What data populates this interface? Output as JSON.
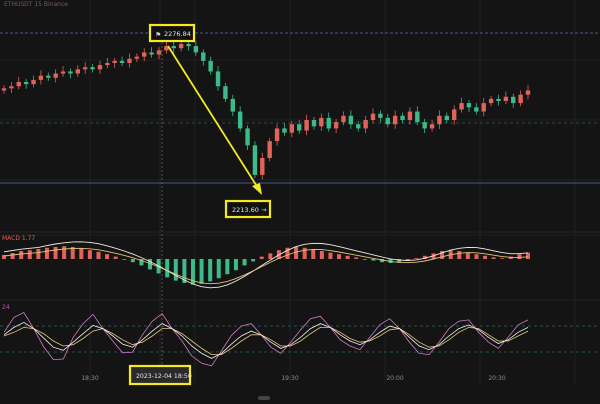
{
  "colors": {
    "background": "#141414",
    "up": "#e3625a",
    "down": "#3dba8a",
    "grid": "#2a2a2a",
    "price_line": "#5a6fc4",
    "dash": "#3e8f86",
    "highlight": "#f5e91f",
    "macd_line": "#f0ece0",
    "signal_line": "#e0c37a",
    "kdj_k": "#f2f2f2",
    "kdj_d": "#e8c77a",
    "kdj_j": "#d27cc6",
    "axis_text": "#8c8c8c"
  },
  "icons": {
    "price_flag": "flag-icon",
    "arrow": "yellow-arrow"
  },
  "chart_data": {
    "type": "candlestick",
    "symbol_line": "ETHUSDT 15 Binance",
    "price_axis": {
      "min": 2195,
      "max": 2285
    },
    "annotations": {
      "high_label": "2276.84",
      "low_label": "2213.60",
      "crosshair_time": "2023-12-04 18:50"
    },
    "x_ticks": [
      "18:30",
      "19:30",
      "20:00",
      "20:30"
    ],
    "macd": {
      "label": "MACD 1.77"
    },
    "kdj": {
      "label": "24"
    },
    "candle_closes": [
      2255,
      2256,
      2258,
      2257,
      2259,
      2261,
      2260,
      2262,
      2263,
      2262,
      2264,
      2265,
      2264,
      2266,
      2267,
      2268,
      2267,
      2269,
      2270,
      2272,
      2271,
      2273,
      2275,
      2274,
      2276,
      2275,
      2272,
      2268,
      2263,
      2256,
      2250,
      2244,
      2236,
      2228,
      2214,
      2222,
      2230,
      2236,
      2234,
      2238,
      2235,
      2240,
      2237,
      2241,
      2236,
      2239,
      2242,
      2238,
      2236,
      2240,
      2243,
      2241,
      2238,
      2242,
      2240,
      2244,
      2239,
      2236,
      2238,
      2242,
      2240,
      2245,
      2248,
      2246,
      2244,
      2248,
      2250,
      2249,
      2251,
      2248,
      2252,
      2254
    ],
    "macd_hist": [
      1,
      1.5,
      2,
      2.2,
      2.5,
      2.8,
      3,
      3.2,
      3,
      2.6,
      2.2,
      1.8,
      1.2,
      0.6,
      0,
      -0.8,
      -1.6,
      -2.6,
      -3.6,
      -4.6,
      -5.4,
      -6,
      -6.4,
      -6.2,
      -5.6,
      -4.8,
      -3.8,
      -2.8,
      -1.6,
      -0.6,
      0.6,
      1.4,
      2.2,
      2.8,
      3,
      2.8,
      2.4,
      2,
      1.6,
      1.2,
      0.8,
      0.4,
      0,
      -0.4,
      -0.8,
      -1,
      -0.8,
      -0.4,
      0.2,
      0.8,
      1.4,
      2,
      2.2,
      2,
      1.6,
      1.2,
      0.8,
      0.4,
      0.2,
      0.6,
      1.2,
      1.6
    ],
    "kdj_k": [
      60,
      72,
      80,
      70,
      55,
      40,
      35,
      48,
      62,
      75,
      70,
      58,
      45,
      40,
      52,
      66,
      78,
      70,
      58,
      42,
      30,
      22,
      30,
      45,
      58,
      66,
      60,
      48,
      38,
      44,
      56,
      70,
      78,
      72,
      60,
      50,
      44,
      52,
      64,
      74,
      70,
      56,
      42,
      36,
      44,
      58,
      70,
      76,
      68,
      56,
      46,
      52,
      64,
      72
    ],
    "kdj_d": [
      58,
      64,
      72,
      70,
      62,
      50,
      42,
      44,
      54,
      66,
      70,
      62,
      52,
      44,
      48,
      58,
      70,
      70,
      62,
      50,
      38,
      28,
      28,
      38,
      50,
      60,
      60,
      52,
      42,
      42,
      50,
      62,
      72,
      72,
      64,
      54,
      48,
      50,
      58,
      68,
      70,
      60,
      48,
      40,
      42,
      52,
      64,
      72,
      70,
      60,
      50,
      50,
      58,
      66
    ],
    "kdj_j": [
      64,
      88,
      96,
      70,
      41,
      20,
      21,
      56,
      78,
      93,
      70,
      50,
      31,
      32,
      60,
      82,
      94,
      70,
      50,
      26,
      14,
      10,
      34,
      59,
      74,
      78,
      60,
      40,
      30,
      48,
      68,
      86,
      90,
      72,
      52,
      42,
      36,
      56,
      76,
      86,
      70,
      48,
      30,
      28,
      48,
      70,
      82,
      84,
      64,
      48,
      38,
      56,
      76,
      84
    ]
  }
}
